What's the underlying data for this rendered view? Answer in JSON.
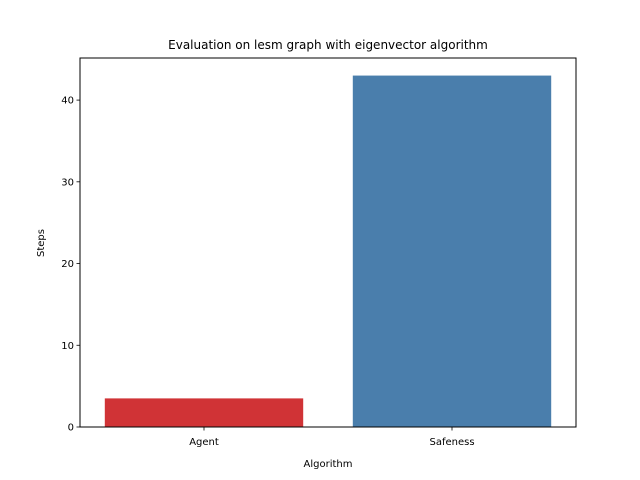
{
  "chart_data": {
    "type": "bar",
    "title": "Evaluation on lesm graph with eigenvector algorithm",
    "xlabel": "Algorithm",
    "ylabel": "Steps",
    "categories": [
      "Agent",
      "Safeness"
    ],
    "values": [
      3.5,
      43
    ],
    "colors": [
      "#d03336",
      "#4a7eac"
    ],
    "ylim": [
      0,
      45.15
    ],
    "yticks": [
      0,
      10,
      20,
      30,
      40
    ],
    "grid": false,
    "legend": "none"
  }
}
